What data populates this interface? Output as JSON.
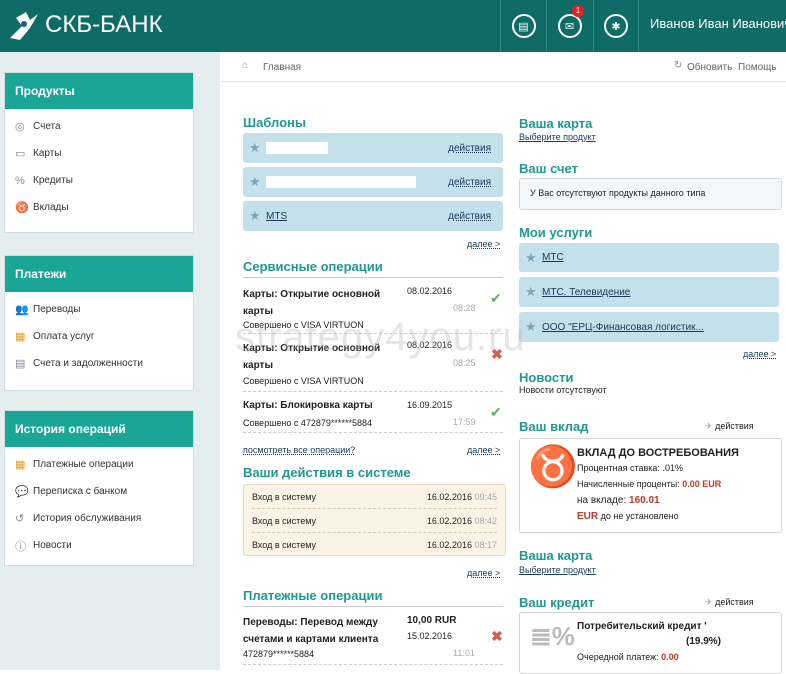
{
  "header": {
    "logo": "СКБ-БАНК",
    "news_icon": "newspaper-icon",
    "mail_icon": "mail-icon",
    "mail_badge": "1",
    "settings_icon": "gear-icon",
    "user": "Иванов Иван Иванович",
    "color": "#0f6b66"
  },
  "sidebar": {
    "products": {
      "title": "Продукты",
      "items": [
        "Счета",
        "Карты",
        "Кредиты",
        "Вклады"
      ]
    },
    "payments": {
      "title": "Платежи",
      "items": [
        "Переводы",
        "Оплата услуг",
        "Счета и задолженности"
      ]
    },
    "history": {
      "title": "История операций",
      "items": [
        "Платежные операции",
        "Переписка с банком",
        "История обслуживания",
        "Новости"
      ]
    },
    "accent": "#1aa697"
  },
  "breadcrumb": {
    "home": "Главная",
    "refresh": "Обновить",
    "help": "Помощь"
  },
  "templates": {
    "title": "Шаблоны",
    "items": [
      {
        "name": "",
        "action": "действия"
      },
      {
        "name": "",
        "action": "действия"
      },
      {
        "name": "MTS",
        "action": "действия"
      }
    ],
    "more": "далее >"
  },
  "service_ops": {
    "title": "Сервисные операции",
    "items": [
      {
        "title": "Карты: Открытие основной карты",
        "date": "08.02.2016",
        "time": "08:28",
        "sub": "Совершено с VISA VIRTUON",
        "status": "success"
      },
      {
        "title": "Карты: Открытие основной карты",
        "date": "08.02.2016",
        "time": "08:25",
        "sub": "Совершено с VISA VIRTUON",
        "status": "failed"
      },
      {
        "title": "Карты: Блокировка карты",
        "date": "16.09.2015",
        "time": "17:59",
        "sub": "Совершено с 472879******5884",
        "status": "success"
      }
    ],
    "view_all": "посмотреть все операции?",
    "more": "далее >"
  },
  "actions": {
    "title": "Ваши действия в системе",
    "items": [
      {
        "name": "Вход в систему",
        "date": "16.02.2016",
        "time": "09:45"
      },
      {
        "name": "Вход в систему",
        "date": "16.02.2016",
        "time": "08:42"
      },
      {
        "name": "Вход в систему",
        "date": "16.02.2016",
        "time": "08:17"
      }
    ],
    "more": "далее >"
  },
  "payment_ops": {
    "title": "Платежные операции",
    "items": [
      {
        "title": "Переводы: Перевод между счетами и картами клиента",
        "amount": "10,00 RUR",
        "date": "15.02.2016",
        "time": "11:01",
        "sub": "472879******5884",
        "status": "failed"
      }
    ]
  },
  "card": {
    "title": "Ваша карта",
    "link": "Выберите продукт"
  },
  "account": {
    "title": "Ваш счет",
    "empty": "У Вас отсутствуют продукты данного типа"
  },
  "services": {
    "title": "Мои услуги",
    "items": [
      "МТС",
      "МТС. Телевидение",
      "ООО \"ЕРЦ-Финансовая логистик..."
    ],
    "more": "далее >"
  },
  "news": {
    "title": "Новости",
    "empty": "Новости отсутствуют"
  },
  "deposit": {
    "title": "Ваш вклад",
    "actions": "действия",
    "name": "ВКЛАД ДО ВОСТРЕБОВАНИЯ",
    "rate_label": "Процентная ставка:",
    "rate": ".01%",
    "accrued_label": "Начисленные проценты:",
    "accrued": "0.00 EUR",
    "balance_label": "на вкладе:",
    "balance": "160.01",
    "currency": "EUR",
    "until": "до не установлено"
  },
  "card2": {
    "title": "Ваша карта",
    "link": "Выберите продукт"
  },
  "credit": {
    "title": "Ваш кредит",
    "actions": "действия",
    "name": "Потребительский кредит '",
    "rate": "(19.9%)",
    "next_label": "Очередной платеж:",
    "next": "0.00"
  },
  "watermark": "strategy4you.ru"
}
